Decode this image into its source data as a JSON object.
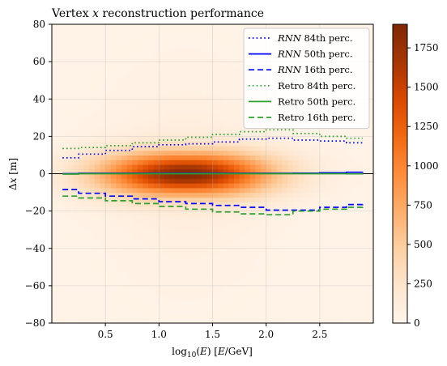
{
  "chart_data": {
    "type": "heatmap",
    "title": "Vertex x reconstruction performance",
    "xlabel": "log10(E) [E/GeV]",
    "ylabel": "Δx [m]",
    "xlim": [
      0.0,
      3.0
    ],
    "ylim": [
      -80,
      80
    ],
    "xticks": [
      0.5,
      1.0,
      1.5,
      2.0,
      2.5
    ],
    "xtick_labels": [
      "0.5",
      "1.0",
      "1.5",
      "2.0",
      "2.5"
    ],
    "yticks": [
      -80,
      -60,
      -40,
      -20,
      0,
      20,
      40,
      60,
      80
    ],
    "ytick_labels": [
      "−80",
      "−60",
      "−40",
      "−20",
      "0",
      "20",
      "40",
      "60",
      "80"
    ],
    "grid": true,
    "zero_line": 0,
    "colorbar": {
      "colormap": "Oranges",
      "range": [
        0,
        1900
      ],
      "ticks": [
        0,
        250,
        500,
        750,
        1000,
        1250,
        1500,
        1750
      ],
      "tick_labels": [
        "0",
        "250",
        "500",
        "750",
        "1000",
        "1250",
        "1500",
        "1750"
      ]
    },
    "density": {
      "peak_x": 1.25,
      "peak_count": 1850,
      "x_spread": 0.55,
      "y_core_spread": 7.5
    },
    "legend_position": "top-right",
    "x": [
      0.1,
      0.25,
      0.5,
      0.75,
      1.0,
      1.25,
      1.5,
      1.75,
      2.0,
      2.25,
      2.5,
      2.75,
      2.9
    ],
    "series": [
      {
        "name": "RNN 84th perc.",
        "color": "#0000ff",
        "dash": "dotted",
        "values": [
          8.5,
          10.5,
          12.5,
          14.5,
          15.5,
          16,
          17,
          18.5,
          19,
          18,
          17.5,
          16.5,
          15.5
        ]
      },
      {
        "name": "RNN 50th perc.",
        "color": "#0000ff",
        "dash": "solid",
        "values": [
          0,
          0.2,
          0.2,
          0.2,
          0.2,
          0.2,
          0.2,
          0.2,
          0.2,
          0.3,
          0.5,
          0.8,
          1.0
        ]
      },
      {
        "name": "RNN 16th perc.",
        "color": "#0000ff",
        "dash": "dashed",
        "values": [
          -8.5,
          -10.5,
          -12,
          -13.5,
          -15,
          -16,
          -17,
          -18,
          -19.5,
          -19.5,
          -18,
          -16.5,
          -15
        ]
      },
      {
        "name": "Retro 84th perc.",
        "color": "#2ca02c",
        "dash": "dotted",
        "values": [
          13.5,
          14,
          15,
          16.5,
          18,
          19.5,
          21,
          22.5,
          23.5,
          21.5,
          20,
          19,
          19
        ]
      },
      {
        "name": "Retro 50th perc.",
        "color": "#2ca02c",
        "dash": "solid",
        "values": [
          -0.2,
          0,
          0,
          0,
          0,
          0,
          0,
          0,
          0,
          0,
          0,
          -0.1,
          0
        ]
      },
      {
        "name": "Retro 16th perc.",
        "color": "#2ca02c",
        "dash": "dashed",
        "values": [
          -12,
          -13,
          -14.5,
          -16,
          -17.5,
          -19,
          -20.5,
          -21.5,
          -22,
          -20,
          -19,
          -18,
          -17
        ]
      }
    ]
  }
}
